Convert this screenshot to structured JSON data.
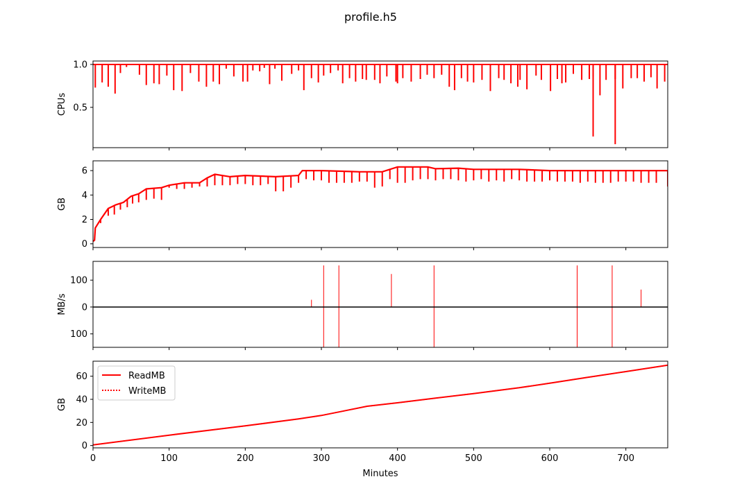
{
  "figure_title": "profile.h5",
  "xlabel": "Minutes",
  "x_ticks": [
    0,
    100,
    200,
    300,
    400,
    500,
    600,
    700
  ],
  "xlim": [
    0,
    755
  ],
  "colors": {
    "series": "#ff0000",
    "zero_line": "#000000",
    "axes": "#000000"
  },
  "chart_data": [
    {
      "type": "line",
      "ylabel": "CPUs",
      "ylim": [
        0.03,
        1.04
      ],
      "yticks": [
        0.5,
        1.0
      ],
      "ytick_labels": [
        "0.5",
        "1.0"
      ],
      "baseline": 1.0,
      "dips": [
        [
          3,
          0.73
        ],
        [
          12,
          0.79
        ],
        [
          20,
          0.74
        ],
        [
          29,
          0.66
        ],
        [
          36,
          0.9
        ],
        [
          44,
          0.97
        ],
        [
          61,
          0.88
        ],
        [
          70,
          0.76
        ],
        [
          80,
          0.78
        ],
        [
          87,
          0.77
        ],
        [
          97,
          0.87
        ],
        [
          106,
          0.7
        ],
        [
          117,
          0.69
        ],
        [
          128,
          0.9
        ],
        [
          139,
          0.8
        ],
        [
          149,
          0.74
        ],
        [
          158,
          0.8
        ],
        [
          166,
          0.77
        ],
        [
          175,
          0.95
        ],
        [
          185,
          0.86
        ],
        [
          197,
          0.8
        ],
        [
          203,
          0.8
        ],
        [
          210,
          0.93
        ],
        [
          219,
          0.92
        ],
        [
          225,
          0.96
        ],
        [
          232,
          0.77
        ],
        [
          239,
          0.95
        ],
        [
          248,
          0.81
        ],
        [
          261,
          0.89
        ],
        [
          270,
          0.93
        ],
        [
          277,
          0.7
        ],
        [
          287,
          0.84
        ],
        [
          296,
          0.79
        ],
        [
          303,
          0.87
        ],
        [
          312,
          0.9
        ],
        [
          322,
          0.93
        ],
        [
          328,
          0.78
        ],
        [
          337,
          0.84
        ],
        [
          345,
          0.8
        ],
        [
          354,
          0.83
        ],
        [
          359,
          0.82
        ],
        [
          370,
          0.82
        ],
        [
          377,
          0.78
        ],
        [
          386,
          0.86
        ],
        [
          398,
          0.8
        ],
        [
          400,
          0.78
        ],
        [
          407,
          0.84
        ],
        [
          418,
          0.8
        ],
        [
          430,
          0.83
        ],
        [
          439,
          0.88
        ],
        [
          448,
          0.84
        ],
        [
          458,
          0.88
        ],
        [
          468,
          0.74
        ],
        [
          475,
          0.7
        ],
        [
          484,
          0.84
        ],
        [
          492,
          0.8
        ],
        [
          500,
          0.79
        ],
        [
          511,
          0.82
        ],
        [
          522,
          0.69
        ],
        [
          533,
          0.84
        ],
        [
          540,
          0.82
        ],
        [
          549,
          0.78
        ],
        [
          558,
          0.74
        ],
        [
          561,
          0.82
        ],
        [
          570,
          0.71
        ],
        [
          582,
          0.87
        ],
        [
          589,
          0.82
        ],
        [
          601,
          0.69
        ],
        [
          610,
          0.83
        ],
        [
          616,
          0.78
        ],
        [
          621,
          0.79
        ],
        [
          631,
          0.89
        ],
        [
          642,
          0.82
        ],
        [
          652,
          0.83
        ],
        [
          657,
          0.86
        ],
        [
          666,
          0.64
        ],
        [
          674,
          0.82
        ],
        [
          686,
          0.83
        ],
        [
          696,
          0.72
        ],
        [
          707,
          0.84
        ],
        [
          715,
          0.84
        ],
        [
          724,
          0.8
        ],
        [
          733,
          0.85
        ],
        [
          741,
          0.72
        ],
        [
          751,
          0.8
        ],
        [
          657,
          0.16
        ],
        [
          686,
          0.07
        ]
      ]
    },
    {
      "type": "line",
      "ylabel": "GB",
      "ylim": [
        -0.3,
        6.8
      ],
      "yticks": [
        0,
        2,
        4,
        6
      ],
      "ytick_labels": [
        "0",
        "2",
        "4",
        "6"
      ],
      "trend": [
        [
          0,
          0.2
        ],
        [
          2,
          0.3
        ],
        [
          3,
          1.3
        ],
        [
          10,
          2.0
        ],
        [
          20,
          2.9
        ],
        [
          30,
          3.2
        ],
        [
          40,
          3.4
        ],
        [
          50,
          3.9
        ],
        [
          60,
          4.1
        ],
        [
          70,
          4.5
        ],
        [
          90,
          4.6
        ],
        [
          100,
          4.8
        ],
        [
          120,
          5.0
        ],
        [
          140,
          5.0
        ],
        [
          150,
          5.4
        ],
        [
          160,
          5.7
        ],
        [
          180,
          5.5
        ],
        [
          200,
          5.6
        ],
        [
          240,
          5.5
        ],
        [
          270,
          5.6
        ],
        [
          275,
          6.0
        ],
        [
          300,
          6.0
        ],
        [
          350,
          5.9
        ],
        [
          380,
          5.9
        ],
        [
          400,
          6.3
        ],
        [
          440,
          6.3
        ],
        [
          450,
          6.15
        ],
        [
          480,
          6.2
        ],
        [
          500,
          6.1
        ],
        [
          560,
          6.1
        ],
        [
          600,
          6.0
        ],
        [
          700,
          6.0
        ],
        [
          755,
          6.0
        ]
      ],
      "dips": [
        [
          10,
          1.7
        ],
        [
          20,
          2.3
        ],
        [
          28,
          2.4
        ],
        [
          36,
          2.8
        ],
        [
          45,
          3.0
        ],
        [
          52,
          3.3
        ],
        [
          60,
          3.4
        ],
        [
          70,
          3.6
        ],
        [
          80,
          3.7
        ],
        [
          90,
          3.6
        ],
        [
          100,
          4.6
        ],
        [
          110,
          4.5
        ],
        [
          120,
          4.5
        ],
        [
          130,
          4.6
        ],
        [
          140,
          4.7
        ],
        [
          150,
          4.7
        ],
        [
          160,
          4.8
        ],
        [
          170,
          4.8
        ],
        [
          180,
          4.8
        ],
        [
          190,
          4.9
        ],
        [
          200,
          4.9
        ],
        [
          210,
          4.8
        ],
        [
          220,
          4.8
        ],
        [
          230,
          4.9
        ],
        [
          240,
          4.3
        ],
        [
          250,
          4.3
        ],
        [
          260,
          4.6
        ],
        [
          270,
          5.0
        ],
        [
          280,
          5.3
        ],
        [
          290,
          5.2
        ],
        [
          300,
          5.2
        ],
        [
          310,
          5.0
        ],
        [
          320,
          5.0
        ],
        [
          330,
          5.0
        ],
        [
          340,
          5.0
        ],
        [
          350,
          5.1
        ],
        [
          360,
          5.1
        ],
        [
          370,
          4.6
        ],
        [
          380,
          4.7
        ],
        [
          390,
          5.3
        ],
        [
          400,
          5.0
        ],
        [
          410,
          5.0
        ],
        [
          420,
          5.2
        ],
        [
          430,
          5.3
        ],
        [
          440,
          5.3
        ],
        [
          450,
          5.2
        ],
        [
          460,
          5.3
        ],
        [
          470,
          5.3
        ],
        [
          480,
          5.2
        ],
        [
          490,
          5.1
        ],
        [
          500,
          5.2
        ],
        [
          510,
          5.3
        ],
        [
          520,
          5.1
        ],
        [
          530,
          5.2
        ],
        [
          540,
          5.1
        ],
        [
          550,
          5.3
        ],
        [
          560,
          5.2
        ],
        [
          570,
          5.1
        ],
        [
          580,
          5.1
        ],
        [
          590,
          5.1
        ],
        [
          600,
          5.2
        ],
        [
          610,
          5.1
        ],
        [
          620,
          5.1
        ],
        [
          630,
          5.1
        ],
        [
          640,
          5.0
        ],
        [
          650,
          5.1
        ],
        [
          660,
          5.0
        ],
        [
          670,
          5.0
        ],
        [
          680,
          5.0
        ],
        [
          690,
          5.1
        ],
        [
          700,
          5.1
        ],
        [
          710,
          5.1
        ],
        [
          720,
          5.0
        ],
        [
          730,
          5.0
        ],
        [
          740,
          5.0
        ],
        [
          755,
          4.7
        ]
      ]
    },
    {
      "type": "bar",
      "ylabel": "MB/s",
      "ylim": [
        -150,
        170
      ],
      "yticks": [
        -100,
        0,
        100
      ],
      "ytick_labels": [
        "100",
        "0",
        "100"
      ],
      "read_spikes": [
        [
          287,
          27
        ],
        [
          303,
          155
        ],
        [
          323,
          155
        ],
        [
          392,
          123
        ],
        [
          448,
          155
        ],
        [
          636,
          155
        ],
        [
          682,
          155
        ],
        [
          720,
          65
        ]
      ],
      "write_spikes": [
        [
          303,
          -155
        ],
        [
          323,
          -155
        ],
        [
          448,
          -155
        ],
        [
          636,
          -155
        ],
        [
          682,
          -155
        ]
      ]
    },
    {
      "type": "line",
      "ylabel": "GB",
      "ylim": [
        -2,
        73
      ],
      "yticks": [
        0,
        20,
        40,
        60
      ],
      "ytick_labels": [
        "0",
        "20",
        "40",
        "60"
      ],
      "series": [
        {
          "name": "ReadMB",
          "style": "solid",
          "points": [
            [
              0,
              0.5
            ],
            [
              100,
              9
            ],
            [
              200,
              17
            ],
            [
              270,
              23
            ],
            [
              300,
              26
            ],
            [
              330,
              30
            ],
            [
              360,
              34
            ],
            [
              400,
              37
            ],
            [
              450,
              41
            ],
            [
              500,
              45
            ],
            [
              560,
              50
            ],
            [
              600,
              54
            ],
            [
              650,
              59
            ],
            [
              700,
              64
            ],
            [
              755,
              69.5
            ]
          ]
        },
        {
          "name": "WriteMB",
          "style": "dotted",
          "points": [
            [
              0,
              0.5
            ],
            [
              100,
              9
            ],
            [
              200,
              17
            ],
            [
              270,
              23
            ],
            [
              300,
              26
            ],
            [
              330,
              30
            ],
            [
              360,
              34
            ],
            [
              400,
              37
            ],
            [
              450,
              41
            ],
            [
              500,
              45
            ],
            [
              560,
              50
            ],
            [
              600,
              54
            ],
            [
              650,
              59
            ],
            [
              700,
              64
            ],
            [
              755,
              69.5
            ]
          ]
        }
      ],
      "legend_position": "upper-left"
    }
  ]
}
